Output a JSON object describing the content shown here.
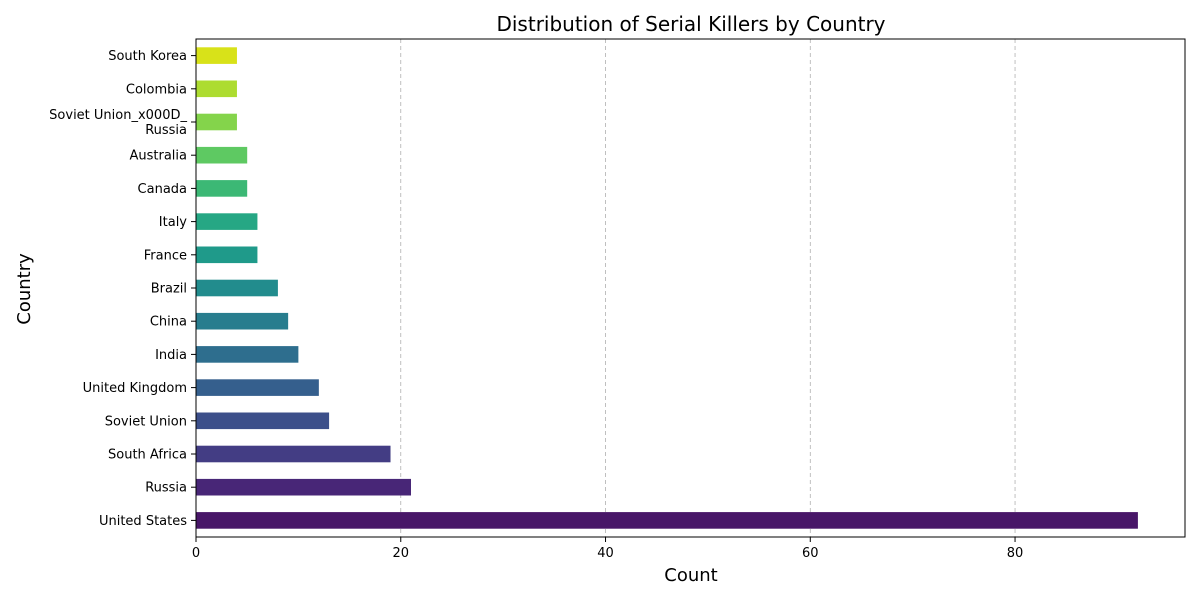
{
  "chart_data": {
    "type": "bar",
    "orientation": "horizontal",
    "title": "Distribution of Serial Killers by Country",
    "xlabel": "Count",
    "ylabel": "Country",
    "categories": [
      "United States",
      "Russia",
      "South Africa",
      "Soviet Union",
      "United Kingdom",
      "India",
      "China",
      "Brazil",
      "France",
      "Italy",
      "Canada",
      "Australia",
      "Soviet Union_x000D_\nRussia",
      "Colombia",
      "South Korea"
    ],
    "values": [
      92,
      21,
      19,
      13,
      12,
      10,
      9,
      8,
      6,
      6,
      5,
      5,
      4,
      4,
      4
    ],
    "colors": [
      "#481668",
      "#482677",
      "#433d84",
      "#3c4f8a",
      "#355f8d",
      "#2e6e8e",
      "#287d8e",
      "#228c8d",
      "#1f9a8a",
      "#26a784",
      "#3cb875",
      "#5ec962",
      "#84d44b",
      "#addc30",
      "#d8e219"
    ],
    "xticks": [
      0,
      20,
      40,
      60,
      80
    ],
    "xlim": [
      0,
      96.6
    ],
    "grid": "x-axis dashed",
    "legend": "none"
  }
}
